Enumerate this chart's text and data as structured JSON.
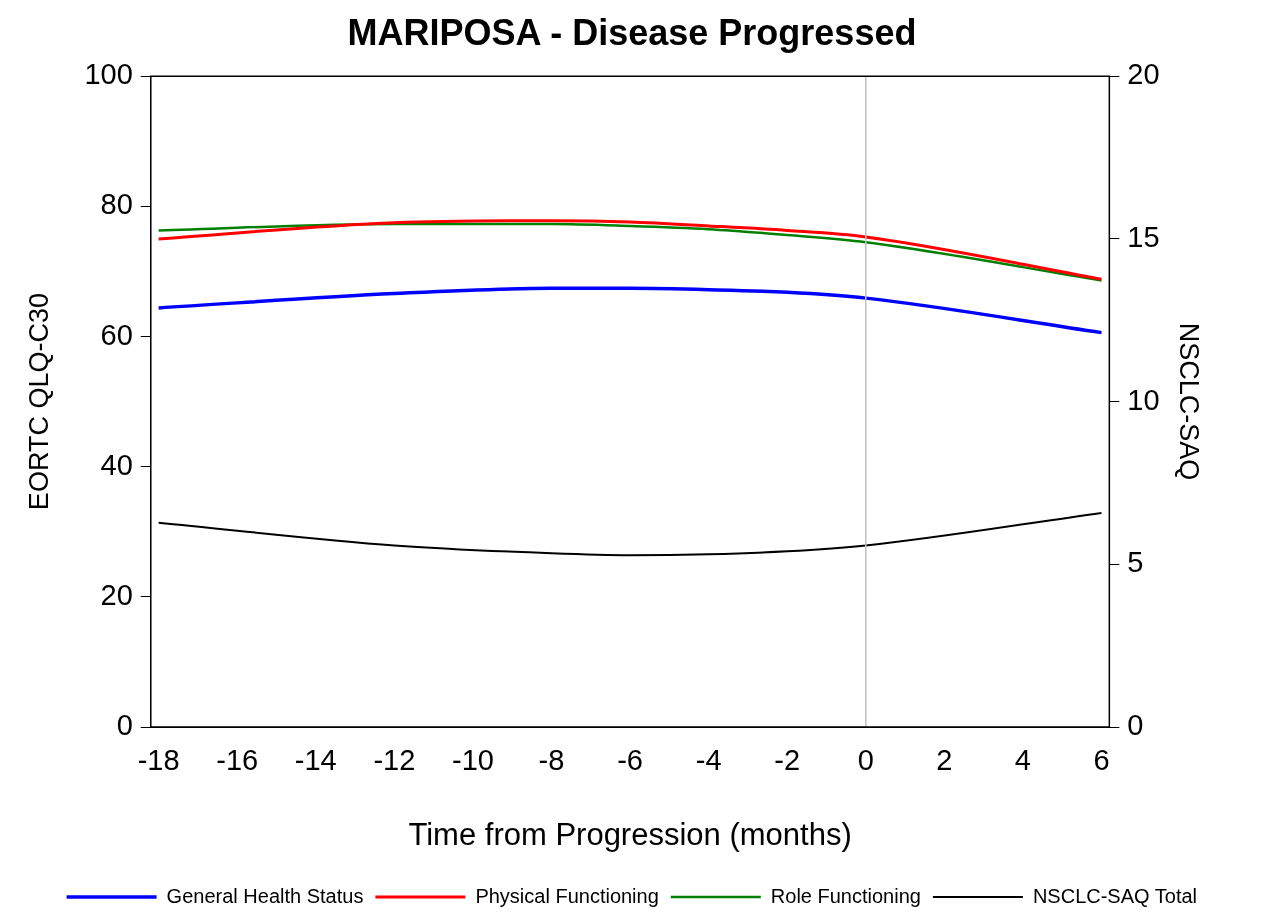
{
  "chart_data": {
    "type": "line",
    "title": "MARIPOSA - Disease Progressed",
    "xlabel": "Time from Progression (months)",
    "ylabel": "EORTC QLQ-C30",
    "y2label": "NSCLC-SAQ",
    "x": [
      -18,
      -12,
      -8,
      -6,
      -4,
      -2,
      0,
      6
    ],
    "series": [
      {
        "name": "General Health Status",
        "color": "#0000ff",
        "values": [
          64.4,
          66.6,
          67.4,
          67.4,
          67.2,
          66.8,
          65.9,
          60.6
        ]
      },
      {
        "name": "Physical Functioning",
        "color": "#ff0000",
        "values": [
          75.0,
          77.5,
          77.8,
          77.6,
          77.0,
          76.3,
          75.3,
          68.8
        ]
      },
      {
        "name": "Role Functioning",
        "color": "#008000",
        "values": [
          76.3,
          77.3,
          77.3,
          77.0,
          76.5,
          75.6,
          74.5,
          68.6
        ]
      },
      {
        "name": "NSCLC-SAQ Total",
        "color": "#000000",
        "axis": "y2",
        "values": [
          6.28,
          5.58,
          5.34,
          5.28,
          5.31,
          5.4,
          5.58,
          6.58
        ]
      }
    ],
    "xlim": [
      -18.2,
      6.2
    ],
    "xticks": [
      -18,
      -16,
      -14,
      -12,
      -10,
      -8,
      -6,
      -4,
      -2,
      0,
      2,
      4,
      6
    ],
    "ylim": [
      0,
      100
    ],
    "yticks": [
      0,
      20,
      40,
      60,
      80,
      100
    ],
    "y2lim": [
      0,
      20
    ],
    "y2ticks": [
      0,
      5,
      10,
      15,
      20
    ],
    "ref_lines": [
      {
        "axis": "x",
        "value": 0,
        "color": "#c0c0c0"
      }
    ],
    "grid": false,
    "legend": "bottom",
    "marker": "none",
    "line_style": "solid"
  }
}
